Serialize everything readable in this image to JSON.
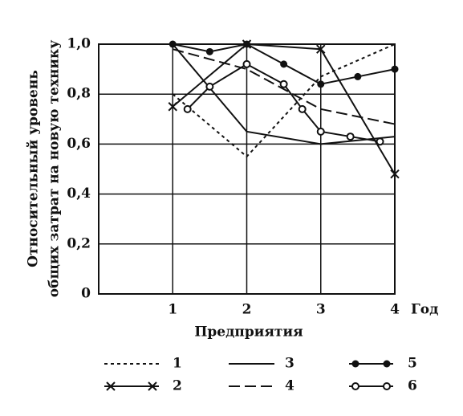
{
  "chart_data": {
    "type": "line",
    "ylabel": [
      "Относительный уровень",
      "общих затрат на новую технику"
    ],
    "xlabel": "Предприятия",
    "xunit": "Год",
    "xlim": [
      0,
      4
    ],
    "xticks": [
      1,
      2,
      3,
      4
    ],
    "ylim": [
      0,
      1.0
    ],
    "yticks": [
      0,
      {
        "value": 0.2,
        "label": "0,2"
      },
      {
        "value": 0.4,
        "label": "0,4"
      },
      {
        "value": 0.6,
        "label": "0,6"
      },
      {
        "value": 0.8,
        "label": "0,8"
      },
      {
        "value": 1.0,
        "label": "1,0"
      }
    ],
    "grid": true,
    "series": [
      {
        "name": "1",
        "color": "#111111",
        "dash": "4,4",
        "marker": "none",
        "x": [
          1,
          2,
          3,
          4
        ],
        "values": [
          0.8,
          0.55,
          0.87,
          1.0
        ]
      },
      {
        "name": "2",
        "color": "#111111",
        "dash": "none",
        "marker": "cross",
        "x": [
          1,
          2,
          3,
          4
        ],
        "values": [
          0.75,
          1.0,
          0.98,
          0.48
        ]
      },
      {
        "name": "3",
        "color": "#111111",
        "dash": "none",
        "marker": "none",
        "x": [
          1,
          2,
          3,
          4
        ],
        "values": [
          1.0,
          0.65,
          0.6,
          0.63
        ]
      },
      {
        "name": "4",
        "color": "#111111",
        "dash": "14,6",
        "marker": "none",
        "x": [
          1,
          2,
          3,
          4
        ],
        "values": [
          0.98,
          0.9,
          0.74,
          0.68
        ]
      },
      {
        "name": "5",
        "color": "#111111",
        "dash": "none",
        "marker": "filled",
        "x": [
          1,
          1.5,
          2,
          2.5,
          3,
          3.5,
          4
        ],
        "values": [
          1.0,
          0.97,
          1.0,
          0.92,
          0.84,
          0.87,
          0.9
        ]
      },
      {
        "name": "6",
        "color": "#111111",
        "dash": "none",
        "marker": "open",
        "x": [
          1.2,
          1.5,
          2,
          2.5,
          2.75,
          3,
          3.4,
          3.8
        ],
        "values": [
          0.74,
          0.83,
          0.92,
          0.84,
          0.74,
          0.65,
          0.63,
          0.61
        ]
      }
    ]
  }
}
